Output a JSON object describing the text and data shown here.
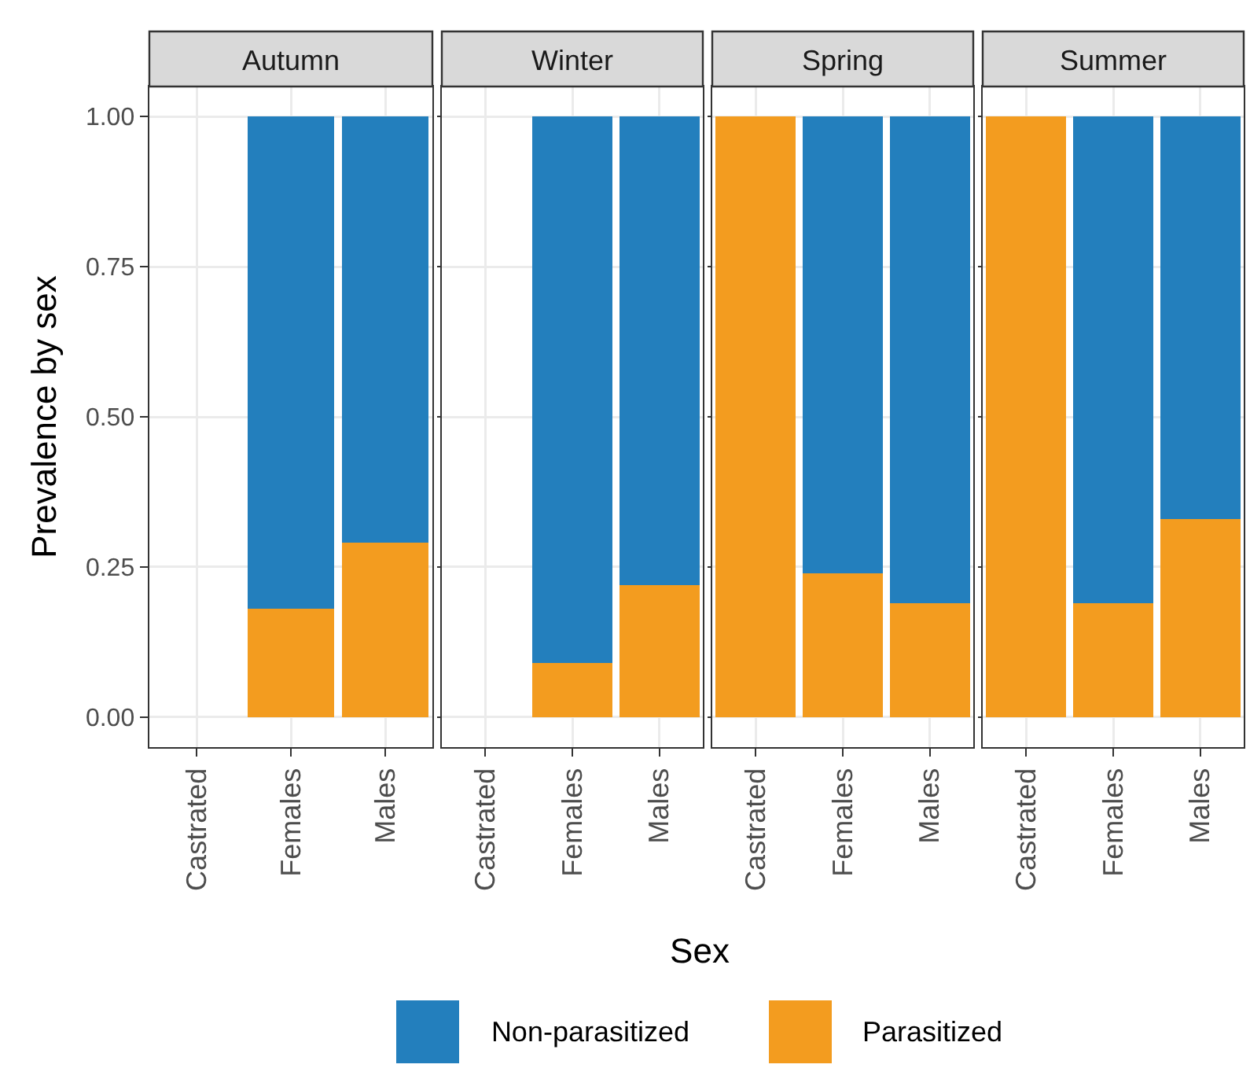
{
  "chart_data": [
    {
      "type": "bar",
      "title": "Autumn",
      "ylabel": "Prevalence by sex",
      "categories": [
        "Castrated",
        "Females",
        "Males"
      ],
      "stacked": true,
      "ylim": [
        -0.05,
        1.05
      ],
      "yticks": [
        {
          "value": 0,
          "label": "0.00"
        },
        {
          "value": 0.25,
          "label": "0.25"
        },
        {
          "value": 0.5,
          "label": "0.50"
        },
        {
          "value": 0.75,
          "label": "0.75"
        },
        {
          "value": 1,
          "label": "1.00"
        }
      ],
      "grid": true,
      "legend": "bottom",
      "series": [
        {
          "name": "Parasitized",
          "color": "#f39c1f",
          "values": [
            null,
            0.18,
            0.29
          ]
        },
        {
          "name": "Non-parasitized",
          "color": "#237fbd",
          "values": [
            null,
            0.82,
            0.71
          ]
        }
      ]
    },
    {
      "type": "bar",
      "title": "Winter",
      "xlabel": "Sex",
      "categories": [
        "Castrated",
        "Females",
        "Males"
      ],
      "stacked": true,
      "ylim": [
        -0.05,
        1.05
      ],
      "yticks": [
        {
          "value": 0,
          "label": null
        },
        {
          "value": 0.25,
          "label": null
        },
        {
          "value": 0.5,
          "label": null
        },
        {
          "value": 0.75,
          "label": null
        },
        {
          "value": 1,
          "label": null
        }
      ],
      "grid": true,
      "tick_labels": "x",
      "series": [
        {
          "color": "#f39c1f",
          "values": [
            null,
            0.09,
            0.22
          ]
        },
        {
          "color": "#237fbd",
          "values": [
            null,
            0.91,
            0.78
          ]
        }
      ]
    },
    {
      "type": "bar",
      "title": "Spring",
      "categories": [
        "Castrated",
        "Females",
        "Males"
      ],
      "stacked": true,
      "ylim": [
        -0.05,
        1.05
      ],
      "yticks": [
        {
          "value": 0,
          "label": null
        },
        {
          "value": 0.25,
          "label": null
        },
        {
          "value": 0.5,
          "label": null
        },
        {
          "value": 0.75,
          "label": null
        },
        {
          "value": 1,
          "label": null
        }
      ],
      "grid": true,
      "tick_labels": "x",
      "series": [
        {
          "color": "#f39c1f",
          "values": [
            1,
            0.24,
            0.19
          ]
        },
        {
          "color": "#237fbd",
          "values": [
            0,
            0.76,
            0.81
          ]
        }
      ]
    },
    {
      "type": "bar",
      "title": "Summer",
      "categories": [
        "Castrated",
        "Females",
        "Males"
      ],
      "stacked": true,
      "ylim": [
        -0.05,
        1.05
      ],
      "yticks": [
        {
          "value": 0,
          "label": null
        },
        {
          "value": 0.25,
          "label": null
        },
        {
          "value": 0.5,
          "label": null
        },
        {
          "value": 0.75,
          "label": null
        },
        {
          "value": 1,
          "label": null
        }
      ],
      "grid": true,
      "tick_labels": "x",
      "series": [
        {
          "color": "#f39c1f",
          "values": [
            1,
            0.19,
            0.33
          ]
        },
        {
          "color": "#237fbd",
          "values": [
            0,
            0.81,
            0.67
          ]
        }
      ]
    }
  ]
}
